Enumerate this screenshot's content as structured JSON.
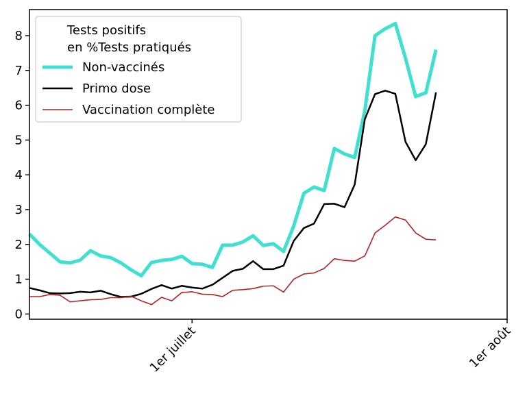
{
  "chart_data": {
    "type": "line",
    "title": "",
    "xlabel": "",
    "ylabel": "",
    "x_start": "2021-06-15",
    "xlim": [
      "2021-06-15",
      "2021-08-01"
    ],
    "x_ticks": [
      {
        "date": "2021-07-01",
        "label": "1er juillet"
      },
      {
        "date": "2021-08-01",
        "label": "1er août"
      }
    ],
    "ylim": [
      -0.15,
      8.75
    ],
    "y_ticks": [
      0,
      1,
      2,
      3,
      4,
      5,
      6,
      7,
      8
    ],
    "grid": false,
    "legend": {
      "title_line1": "Tests positifs",
      "title_line2": "en %Tests pratiqués",
      "placement": "top-left"
    },
    "series": [
      {
        "name": "Non-vaccinés",
        "color": "#40e0d0",
        "values": [
          2.3,
          2.0,
          1.75,
          1.5,
          1.47,
          1.55,
          1.82,
          1.67,
          1.62,
          1.47,
          1.27,
          1.1,
          1.48,
          1.54,
          1.57,
          1.66,
          1.45,
          1.43,
          1.34,
          1.98,
          1.98,
          2.07,
          2.25,
          1.97,
          2.02,
          1.8,
          2.53,
          3.47,
          3.65,
          3.55,
          4.76,
          4.6,
          4.5,
          5.85,
          8.0,
          8.2,
          8.35,
          7.35,
          6.25,
          6.36,
          7.6
        ]
      },
      {
        "name": "Primo dose",
        "color": "#000000",
        "values": [
          0.75,
          0.68,
          0.6,
          0.59,
          0.6,
          0.64,
          0.62,
          0.67,
          0.57,
          0.49,
          0.5,
          0.58,
          0.72,
          0.83,
          0.73,
          0.81,
          0.76,
          0.73,
          0.84,
          1.04,
          1.24,
          1.3,
          1.52,
          1.29,
          1.29,
          1.39,
          2.1,
          2.47,
          2.6,
          3.16,
          3.17,
          3.07,
          3.72,
          5.6,
          6.32,
          6.42,
          6.33,
          4.95,
          4.42,
          4.88,
          6.37
        ]
      },
      {
        "name": "Vaccination complète",
        "color": "#b22222",
        "values": [
          0.5,
          0.5,
          0.56,
          0.54,
          0.35,
          0.38,
          0.41,
          0.42,
          0.47,
          0.47,
          0.51,
          0.38,
          0.27,
          0.48,
          0.38,
          0.62,
          0.64,
          0.57,
          0.56,
          0.5,
          0.68,
          0.7,
          0.73,
          0.8,
          0.81,
          0.63,
          1.0,
          1.15,
          1.18,
          1.31,
          1.59,
          1.54,
          1.52,
          1.67,
          2.33,
          2.55,
          2.79,
          2.7,
          2.33,
          2.15,
          2.13
        ]
      }
    ]
  }
}
